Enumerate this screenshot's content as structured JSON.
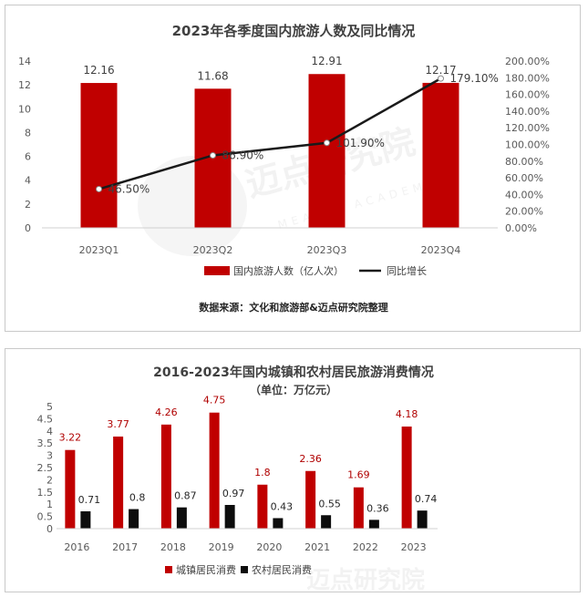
{
  "colors": {
    "bar_red": "#c00000",
    "bar_black": "#0d0d0d",
    "line_black": "#1a1a1a",
    "grid": "#dedede"
  },
  "chart_data": [
    {
      "type": "bar",
      "title": "2023年各季度国内旅游人数及同比情况",
      "categories": [
        "2023Q1",
        "2023Q2",
        "2023Q3",
        "2023Q4"
      ],
      "series": [
        {
          "name": "国内旅游人数（亿人次）",
          "type": "bar",
          "axis": "left",
          "values": [
            12.16,
            11.68,
            12.91,
            12.17
          ],
          "labels": [
            "12.16",
            "11.68",
            "12.91",
            "12.17"
          ]
        },
        {
          "name": "同比增长",
          "type": "line",
          "axis": "right",
          "values": [
            46.5,
            86.9,
            101.9,
            179.1
          ],
          "labels": [
            "46.50%",
            "86.90%",
            "101.90%",
            "179.10%"
          ]
        }
      ],
      "ylim": [
        0,
        14
      ],
      "y_ticks": [
        "0",
        "2",
        "4",
        "6",
        "8",
        "10",
        "12",
        "14"
      ],
      "y2lim": [
        0,
        200
      ],
      "y2_ticks": [
        "0.00%",
        "20.00%",
        "40.00%",
        "60.00%",
        "80.00%",
        "100.00%",
        "120.00%",
        "140.00%",
        "160.00%",
        "180.00%",
        "200.00%"
      ],
      "legend_position": "bottom",
      "source": "数据来源：文化和旅游部&迈点研究院整理",
      "grid": false
    },
    {
      "type": "bar",
      "title": "2016-2023年国内城镇和农村居民旅游消费情况",
      "subtitle": "（单位：万亿元）",
      "categories": [
        "2016",
        "2017",
        "2018",
        "2019",
        "2020",
        "2021",
        "2022",
        "2023"
      ],
      "series": [
        {
          "name": "城镇居民消费",
          "values": [
            3.22,
            3.77,
            4.26,
            4.75,
            1.8,
            2.36,
            1.69,
            4.18
          ],
          "labels": [
            "3.22",
            "3.77",
            "4.26",
            "4.75",
            "1.8",
            "2.36",
            "1.69",
            "4.18"
          ]
        },
        {
          "name": "农村居民消费",
          "values": [
            0.71,
            0.8,
            0.87,
            0.97,
            0.43,
            0.55,
            0.36,
            0.74
          ],
          "labels": [
            "0.71",
            "0.8",
            "0.87",
            "0.97",
            "0.43",
            "0.55",
            "0.36",
            "0.74"
          ]
        }
      ],
      "ylim": [
        0,
        5
      ],
      "y_ticks": [
        "0",
        "0.5",
        "1",
        "1.5",
        "2",
        "2.5",
        "3",
        "3.5",
        "4",
        "4.5",
        "5"
      ],
      "legend_position": "bottom",
      "grid": false
    }
  ],
  "watermark": {
    "brand": "迈点研究院",
    "sub": "MEADIN ACADEMY"
  }
}
